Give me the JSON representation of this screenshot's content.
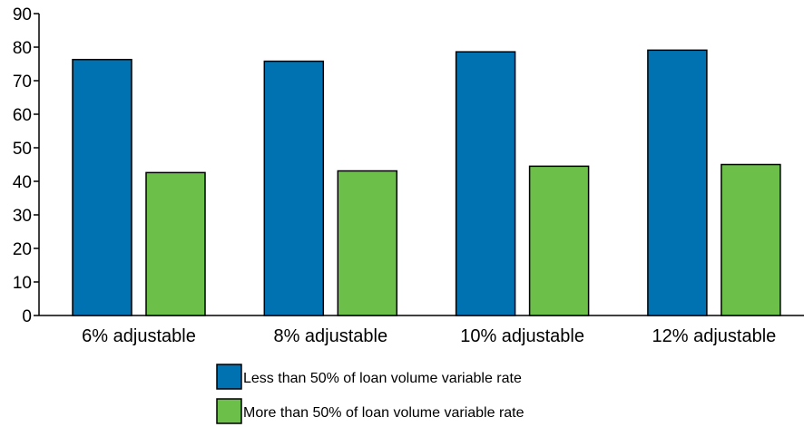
{
  "chart_data": {
    "type": "bar",
    "categories": [
      "6% adjustable",
      "8% adjustable",
      "10% adjustable",
      "12% adjustable"
    ],
    "series": [
      {
        "name": "Less than 50% of loan volume variable rate",
        "color": "#0072b2",
        "values": [
          76.3,
          75.8,
          78.6,
          79.1
        ]
      },
      {
        "name": "More than 50% of loan volume variable rate",
        "color": "#6cc04a",
        "values": [
          42.6,
          43.1,
          44.5,
          45.0
        ]
      }
    ],
    "title": "",
    "xlabel": "",
    "ylabel": "",
    "ylim": [
      0,
      90
    ],
    "yticks": [
      "0",
      "10",
      "20",
      "30",
      "40",
      "50",
      "60",
      "70",
      "80",
      "90"
    ],
    "grid": false,
    "legend_position": "bottom-center"
  }
}
